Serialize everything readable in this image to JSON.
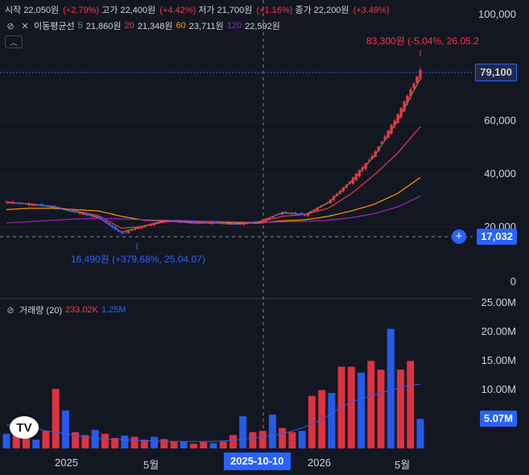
{
  "ohlc": {
    "open_label": "시작",
    "open": "22,050원",
    "open_chg": "(+2.79%)",
    "high_label": "고가",
    "high": "22,400원",
    "high_chg": "(+4.42%)",
    "low_label": "저가",
    "low": "21,700원",
    "low_chg": "(+1.16%)",
    "close_label": "종가",
    "close": "22,200원",
    "close_chg": "(+3.49%)"
  },
  "ma": {
    "title": "이동평균선",
    "p5": "5",
    "v5": "21,860원",
    "p20": "20",
    "v20": "21,348원",
    "p60": "60",
    "v60": "23,711원",
    "p120": "120",
    "v120": "22,592원",
    "collapse_icon": "chevron-up-icon"
  },
  "volume_legend": {
    "title": "거래량 (20)",
    "v1": "233.02K",
    "v2": "1.25M"
  },
  "price_axis": [
    "100,000",
    "60,000",
    "40,000",
    "20,000",
    "0"
  ],
  "volume_axis": [
    "25.00M",
    "20.00M",
    "15.00M",
    "10.00M"
  ],
  "badges": {
    "last_price": "79,100",
    "crosshair_price": "17,032",
    "volume": "5.07M"
  },
  "x_axis": [
    "2025",
    "5월",
    "2026",
    "5월"
  ],
  "crosshair_date": "2025-10-10",
  "annotations": {
    "high": "83,300원 (-5.04%, 26.05.2",
    "low": "16,490원 (+379.68%, 25.04.07)"
  },
  "logo_text": "TV",
  "colors": {
    "up": "#f23645",
    "down": "#2962ff",
    "ma5": "#4caf50",
    "ma20": "#f23645",
    "ma60": "#ff9800",
    "ma120": "#9c27b0",
    "background": "#131722"
  },
  "chart_data": [
    {
      "type": "candlestick",
      "y_range": [
        0,
        100000
      ],
      "x_range": [
        "2024-10",
        "2026-05"
      ],
      "series": [
        {
          "name": "close_approx",
          "x": [
            "2024-11",
            "2024-12",
            "2025-01",
            "2025-02",
            "2025-03",
            "2025-04",
            "2025-05",
            "2025-06",
            "2025-07",
            "2025-08",
            "2025-09",
            "2025-10",
            "2025-11",
            "2025-12",
            "2026-01",
            "2026-02",
            "2026-03",
            "2026-04",
            "2026-05"
          ],
          "values": [
            30000,
            29000,
            28000,
            26000,
            24000,
            18000,
            21000,
            23000,
            22000,
            22000,
            21500,
            22500,
            26000,
            25000,
            30000,
            38000,
            48000,
            62000,
            79100
          ]
        },
        {
          "name": "5",
          "values": [
            29800,
            29000,
            28000,
            26200,
            24200,
            18500,
            21000,
            23000,
            22000,
            22000,
            21500,
            22500,
            25800,
            25200,
            29500,
            37500,
            47000,
            60000,
            76000
          ]
        },
        {
          "name": "20",
          "values": [
            29500,
            29200,
            28200,
            26500,
            24800,
            20000,
            20800,
            22600,
            22200,
            22000,
            21700,
            22300,
            24500,
            25200,
            27500,
            33000,
            40000,
            48000,
            58000
          ]
        },
        {
          "name": "60",
          "values": [
            27000,
            27500,
            27500,
            27000,
            26500,
            24500,
            23000,
            22800,
            22600,
            22500,
            22000,
            22000,
            22800,
            23200,
            24500,
            26500,
            29000,
            33000,
            39000
          ]
        },
        {
          "name": "120",
          "values": [
            22000,
            22500,
            23000,
            23500,
            23800,
            23500,
            23200,
            23000,
            22800,
            22600,
            22400,
            22300,
            22400,
            22600,
            23000,
            24000,
            25500,
            28000,
            32000
          ]
        }
      ],
      "annotations": [
        {
          "label": "83,300원",
          "value": 83300,
          "date": "26.05"
        },
        {
          "label": "16,490원",
          "value": 16490,
          "date": "25.04.07"
        }
      ]
    },
    {
      "type": "bar",
      "y_range": [
        0,
        25000000
      ],
      "title": "거래량 (20)",
      "series": [
        {
          "name": "volume_millions",
          "values": [
            2.5,
            3.8,
            4.5,
            1.5,
            3.0,
            10.2,
            6.5,
            2.8,
            2.3,
            3.2,
            2.5,
            1.8,
            2.2,
            2.0,
            1.5,
            2.0,
            1.6,
            1.2,
            1.2,
            0.8,
            1.1,
            0.9,
            1.2,
            2.3,
            5.5,
            2.8,
            3.0,
            5.8,
            3.5,
            2.8,
            3.0,
            9.0,
            10.0,
            9.5,
            14.0,
            14.0,
            13.0,
            15.0,
            13.5,
            20.5,
            13.5,
            15.0,
            5.07
          ]
        },
        {
          "name": "ma20_millions",
          "values": [
            4.0,
            4.0,
            3.8,
            3.5,
            3.0,
            2.8,
            2.5,
            2.2,
            2.0,
            1.8,
            1.6,
            1.5,
            1.5,
            1.4,
            1.3,
            1.3,
            1.2,
            1.2,
            1.2,
            1.2,
            1.2,
            1.2,
            1.3,
            1.4,
            1.6,
            1.8,
            2.0,
            2.2,
            2.5,
            3.0,
            3.5,
            4.2,
            5.0,
            6.0,
            7.0,
            8.0,
            8.5,
            9.0,
            9.5,
            10.0,
            10.5,
            10.8,
            11.0
          ]
        }
      ]
    }
  ]
}
